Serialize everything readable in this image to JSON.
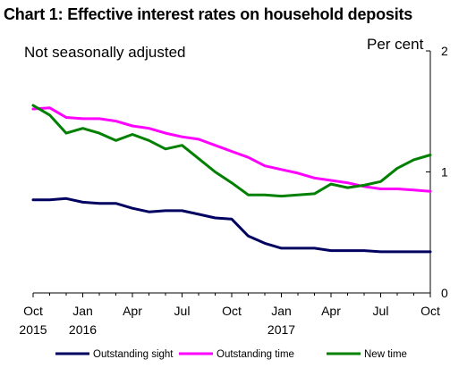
{
  "chart_data": {
    "type": "line",
    "title": "Chart 1: Effective interest rates on household deposits",
    "subtitle": "Not seasonally adjusted",
    "unit_label": "Per cent",
    "yaxis_position": "right",
    "ylim": [
      0,
      2
    ],
    "yticks": [
      0,
      1,
      2
    ],
    "x_month_ticks": [
      "Oct",
      "Jan",
      "Apr",
      "Jul",
      "Oct",
      "Jan",
      "Apr",
      "Jul",
      "Oct"
    ],
    "x_year_labels": [
      {
        "label": "2015",
        "at_month": 0
      },
      {
        "label": "2016",
        "at_month": 3
      },
      {
        "label": "2017",
        "at_month": 15
      }
    ],
    "x_months": 24,
    "legend_position": "bottom",
    "series": [
      {
        "name": "Outstanding sight",
        "color": "#000060",
        "values": [
          0.77,
          0.77,
          0.78,
          0.75,
          0.74,
          0.74,
          0.7,
          0.67,
          0.68,
          0.68,
          0.65,
          0.62,
          0.61,
          0.47,
          0.41,
          0.37,
          0.37,
          0.37,
          0.35,
          0.35,
          0.35,
          0.34,
          0.34,
          0.34,
          0.34
        ]
      },
      {
        "name": "Outstanding time",
        "color": "#ff00ff",
        "values": [
          1.52,
          1.53,
          1.45,
          1.44,
          1.44,
          1.42,
          1.38,
          1.36,
          1.32,
          1.29,
          1.27,
          1.22,
          1.17,
          1.12,
          1.05,
          1.02,
          0.99,
          0.95,
          0.93,
          0.91,
          0.88,
          0.86,
          0.86,
          0.85,
          0.84
        ]
      },
      {
        "name": "New time",
        "color": "#008000",
        "values": [
          1.55,
          1.47,
          1.32,
          1.36,
          1.32,
          1.26,
          1.31,
          1.26,
          1.19,
          1.22,
          1.11,
          1.0,
          0.91,
          0.81,
          0.81,
          0.8,
          0.81,
          0.82,
          0.9,
          0.87,
          0.89,
          0.92,
          1.03,
          1.1,
          1.14
        ]
      }
    ]
  }
}
